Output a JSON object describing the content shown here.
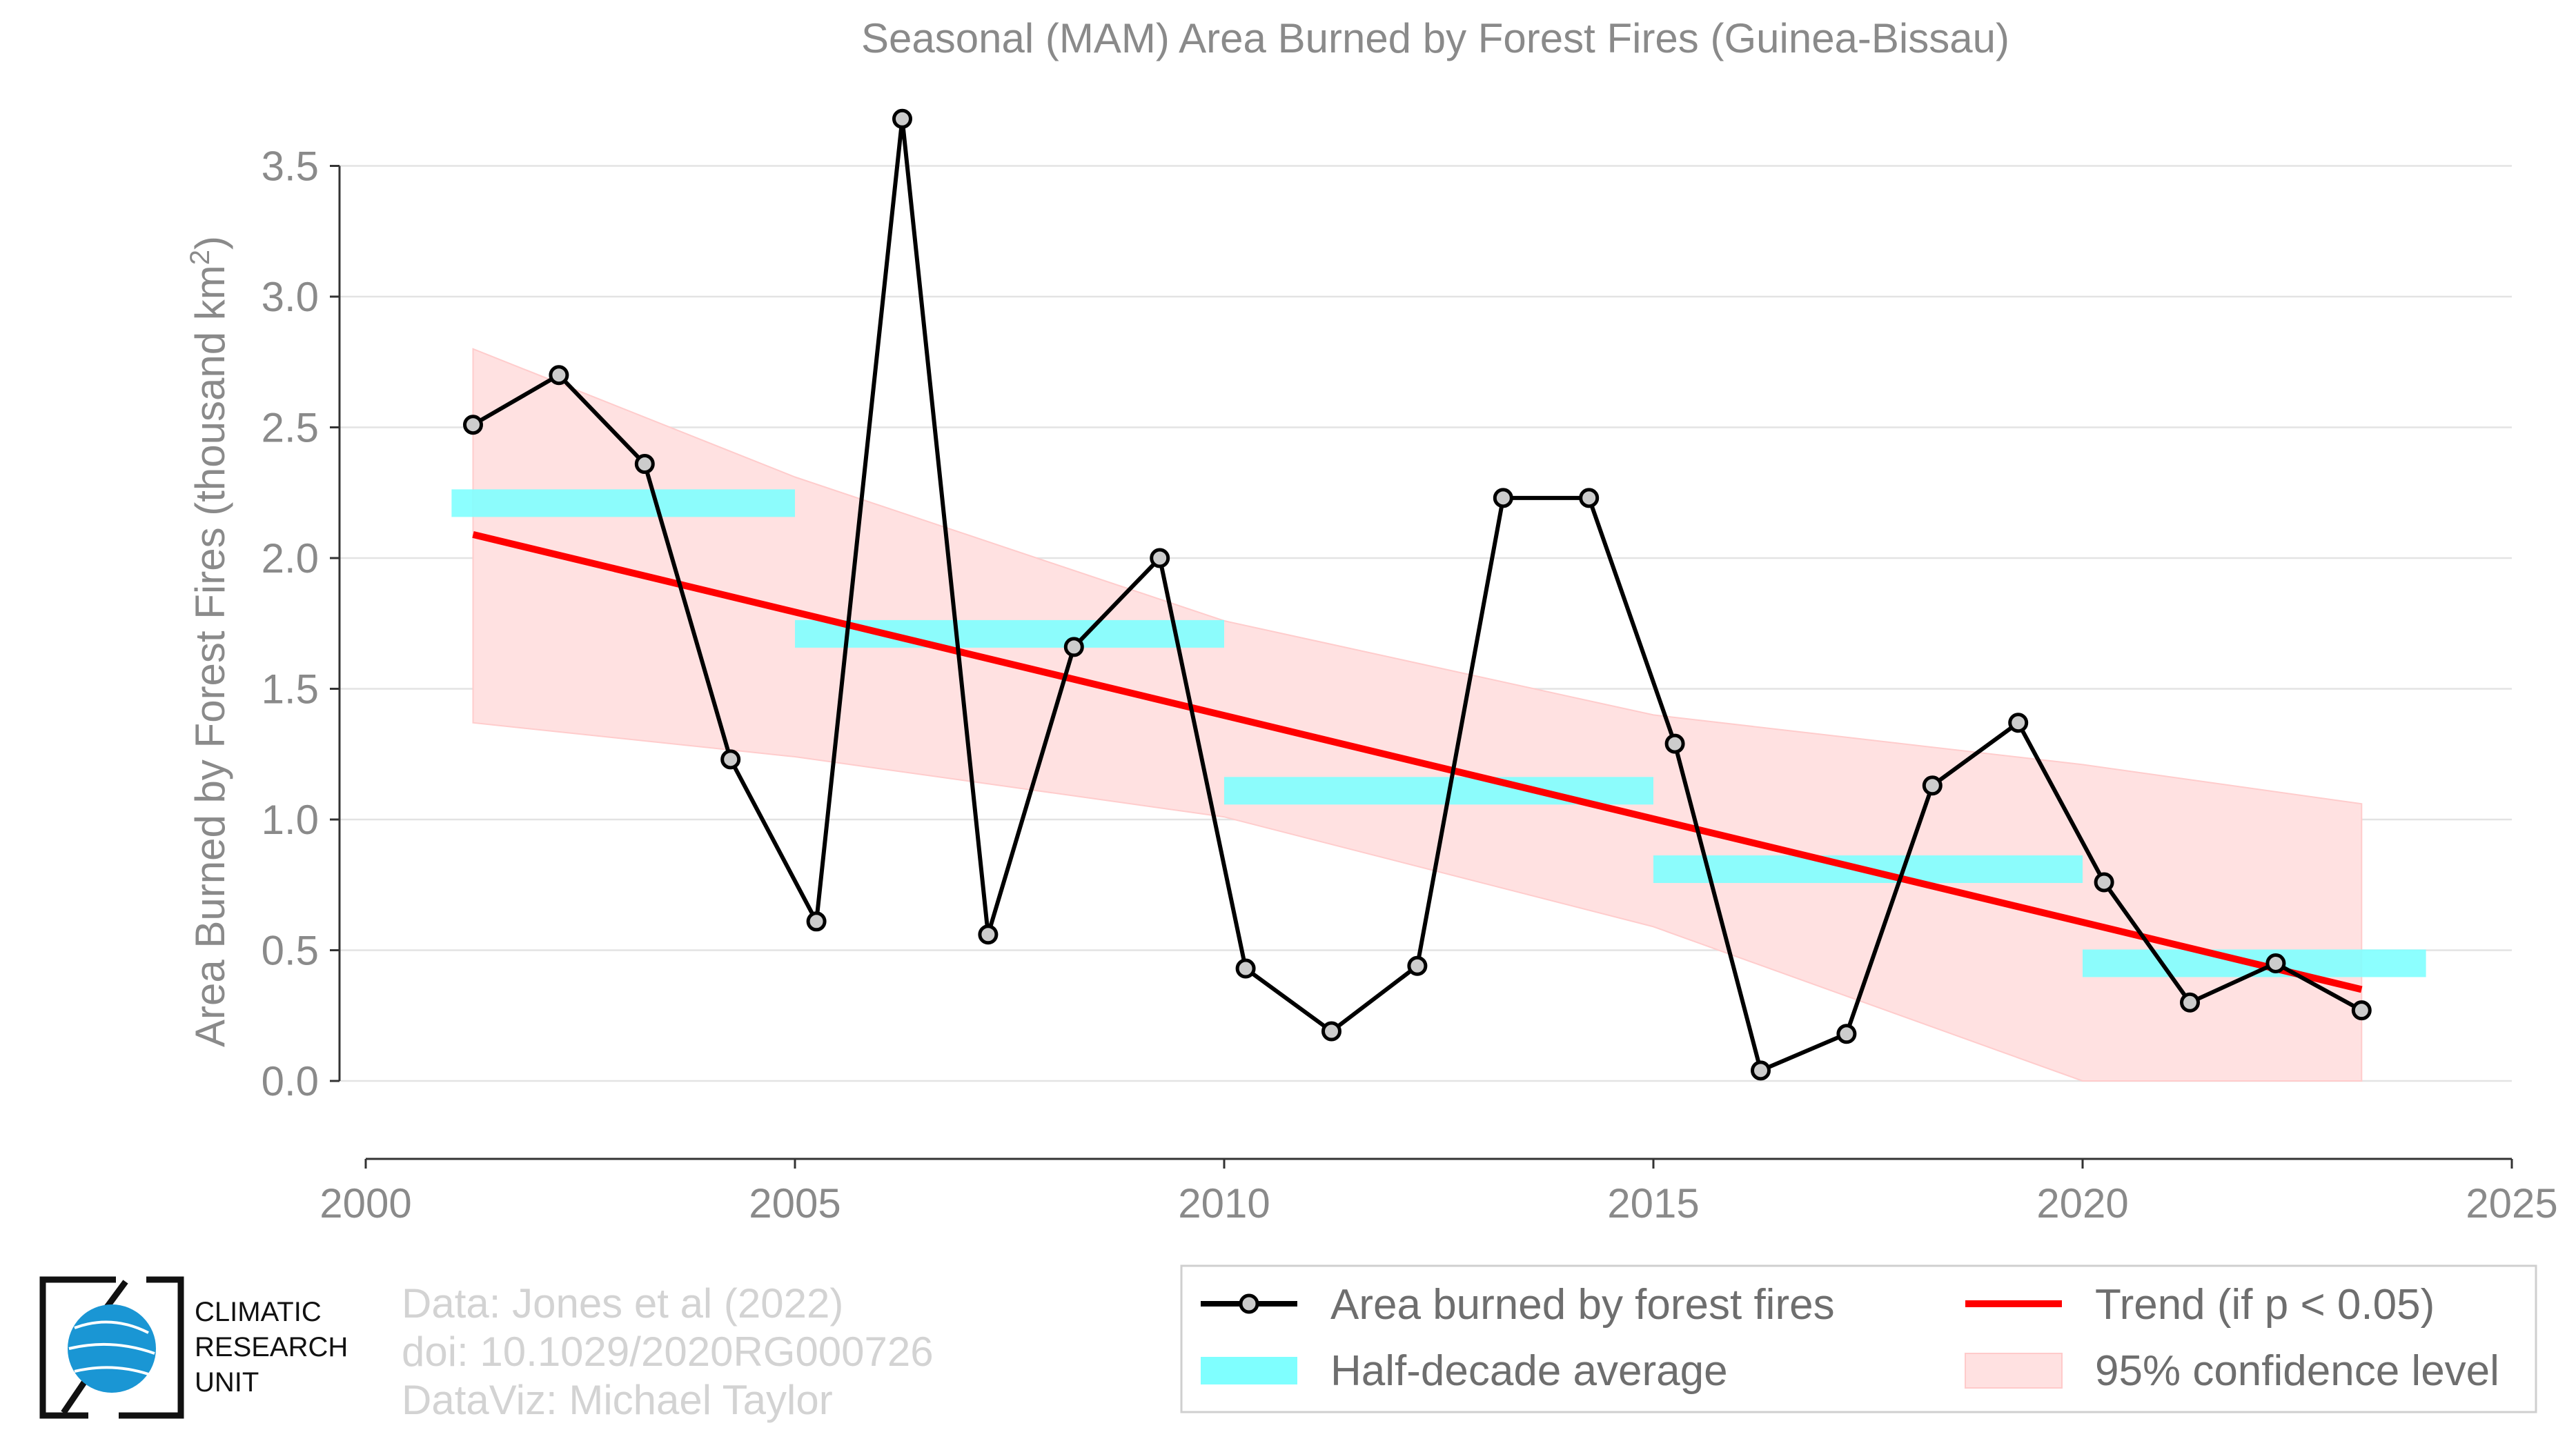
{
  "chart_data": {
    "type": "line",
    "title": "Seasonal (MAM) Area Burned by Forest Fires (Guinea-Bissau)",
    "ylabel": "Area Burned by Forest Fires (thousand km",
    "ylabel_sup": "2",
    "ylabel_close": ")",
    "xlabel": "",
    "xlim": [
      2000,
      2025
    ],
    "ylim": [
      -0.3,
      3.7
    ],
    "xticks": [
      "2000",
      "2005",
      "2010",
      "2015",
      "2020",
      "2025"
    ],
    "yticks": [
      "0.0",
      "0.5",
      "1.0",
      "1.5",
      "2.0",
      "2.5",
      "3.0",
      "3.5"
    ],
    "grid": true,
    "series": [
      {
        "name": "Area burned by forest fires",
        "color": "#000000",
        "marker_fill": "#cccccc",
        "x": [
          2001.25,
          2002.25,
          2003.25,
          2004.25,
          2005.25,
          2006.25,
          2007.25,
          2008.25,
          2009.25,
          2010.25,
          2011.25,
          2012.25,
          2013.25,
          2014.25,
          2015.25,
          2016.25,
          2017.25,
          2018.25,
          2019.25,
          2020.25,
          2021.25,
          2022.25,
          2023.25
        ],
        "y": [
          2.51,
          2.7,
          2.36,
          1.23,
          0.61,
          3.68,
          0.56,
          1.66,
          2.0,
          0.43,
          0.19,
          0.44,
          2.23,
          2.23,
          1.29,
          0.04,
          0.18,
          1.13,
          1.37,
          0.76,
          0.3,
          0.45,
          0.27
        ]
      }
    ],
    "half_decade_average": {
      "name": "Half-decade average",
      "color": "#7fffff",
      "segments": [
        {
          "x0": 2001.0,
          "x1": 2005.0,
          "y": 2.21
        },
        {
          "x0": 2005.0,
          "x1": 2010.0,
          "y": 1.71
        },
        {
          "x0": 2010.0,
          "x1": 2015.0,
          "y": 1.11
        },
        {
          "x0": 2015.0,
          "x1": 2020.0,
          "y": 0.81
        },
        {
          "x0": 2020.0,
          "x1": 2024.0,
          "y": 0.45
        }
      ]
    },
    "trend": {
      "name": "Trend (if p < 0.05)",
      "color": "#ff0000",
      "x": [
        2001.25,
        2023.25
      ],
      "y": [
        2.09,
        0.35
      ]
    },
    "confidence_band": {
      "name": "95% confidence level",
      "color": "#ffe1e1",
      "x": [
        2001.25,
        2005.0,
        2010.0,
        2015.0,
        2020.0,
        2023.25
      ],
      "upper": [
        2.8,
        2.31,
        1.76,
        1.4,
        1.21,
        1.06
      ],
      "lower": [
        1.37,
        1.24,
        1.01,
        0.59,
        0.0,
        0.0
      ]
    },
    "legend_position": "bottom-right"
  },
  "credits": {
    "line1": "Data: Jones et al (2022)",
    "line2": "doi: 10.1029/2020RG000726",
    "line3": "DataViz: Michael Taylor"
  },
  "logo": {
    "line1": "CLIMATIC",
    "line2": "RESEARCH",
    "line3": "UNIT",
    "icon": "globe-icon"
  }
}
